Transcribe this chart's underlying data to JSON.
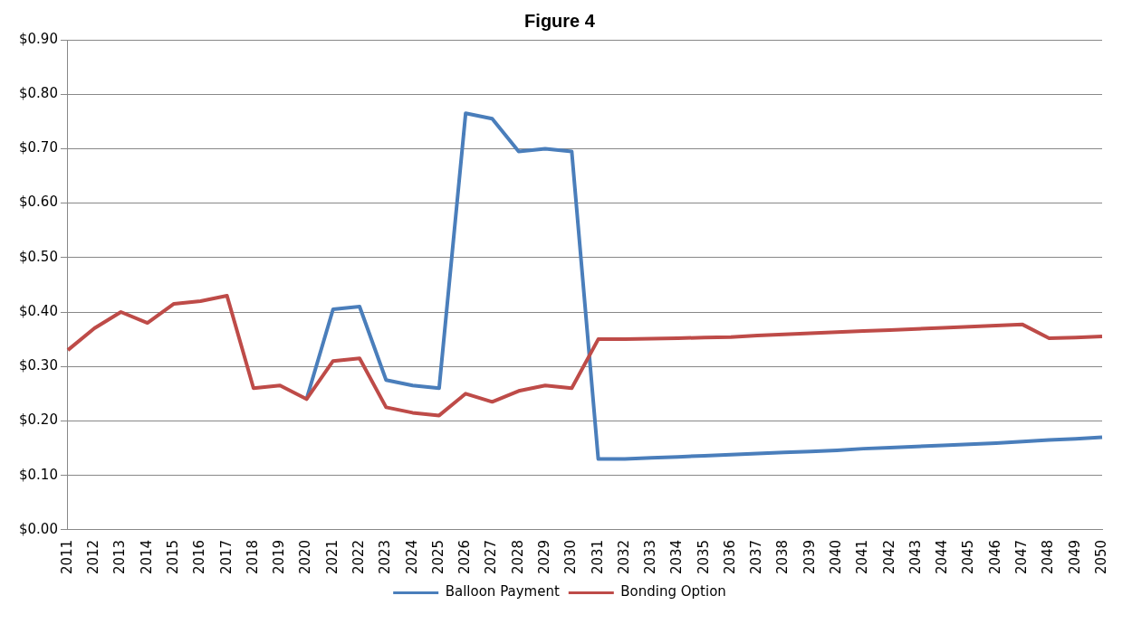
{
  "chart_data": {
    "type": "line",
    "title": "Figure 4",
    "categories": [
      "2011",
      "2012",
      "2013",
      "2014",
      "2015",
      "2016",
      "2017",
      "2018",
      "2019",
      "2020",
      "2021",
      "2022",
      "2023",
      "2024",
      "2025",
      "2026",
      "2027",
      "2028",
      "2029",
      "2030",
      "2031",
      "2032",
      "2033",
      "2034",
      "2035",
      "2036",
      "2037",
      "2038",
      "2039",
      "2040",
      "2041",
      "2042",
      "2043",
      "2044",
      "2045",
      "2046",
      "2047",
      "2048",
      "2049",
      "2050"
    ],
    "series": [
      {
        "name": "Balloon Payment",
        "color": "#4a7ebb",
        "values": [
          null,
          null,
          null,
          null,
          null,
          null,
          null,
          null,
          null,
          0.24,
          0.405,
          0.41,
          0.275,
          0.265,
          0.26,
          0.765,
          0.755,
          0.695,
          0.7,
          0.695,
          0.13,
          0.13,
          0.132,
          0.134,
          0.136,
          0.138,
          0.14,
          0.142,
          0.144,
          0.146,
          0.149,
          0.151,
          0.153,
          0.155,
          0.157,
          0.159,
          0.162,
          0.165,
          0.167,
          0.17
        ]
      },
      {
        "name": "Bonding Option",
        "color": "#be4b48",
        "values": [
          0.33,
          0.37,
          0.4,
          0.38,
          0.415,
          0.42,
          0.43,
          0.26,
          0.265,
          0.24,
          0.31,
          0.315,
          0.225,
          0.215,
          0.21,
          0.25,
          0.235,
          0.255,
          0.265,
          0.26,
          0.35,
          0.35,
          0.351,
          0.352,
          0.353,
          0.354,
          0.357,
          0.359,
          0.361,
          0.363,
          0.365,
          0.367,
          0.369,
          0.371,
          0.373,
          0.375,
          0.377,
          0.352,
          0.353,
          0.355
        ]
      }
    ],
    "ylim": [
      0,
      0.9
    ],
    "yticks": [
      {
        "value": 0,
        "label": "$0.00"
      },
      {
        "value": 0.1,
        "label": "$0.10"
      },
      {
        "value": 0.2,
        "label": "$0.20"
      },
      {
        "value": 0.3,
        "label": "$0.30"
      },
      {
        "value": 0.4,
        "label": "$0.40"
      },
      {
        "value": 0.5,
        "label": "$0.50"
      },
      {
        "value": 0.6,
        "label": "$0.60"
      },
      {
        "value": 0.7,
        "label": "$0.70"
      },
      {
        "value": 0.8,
        "label": "$0.80"
      },
      {
        "value": 0.9,
        "label": "$0.90"
      }
    ],
    "grid": "y",
    "legend": "bottom",
    "marker": "none",
    "line_style": "solid"
  }
}
